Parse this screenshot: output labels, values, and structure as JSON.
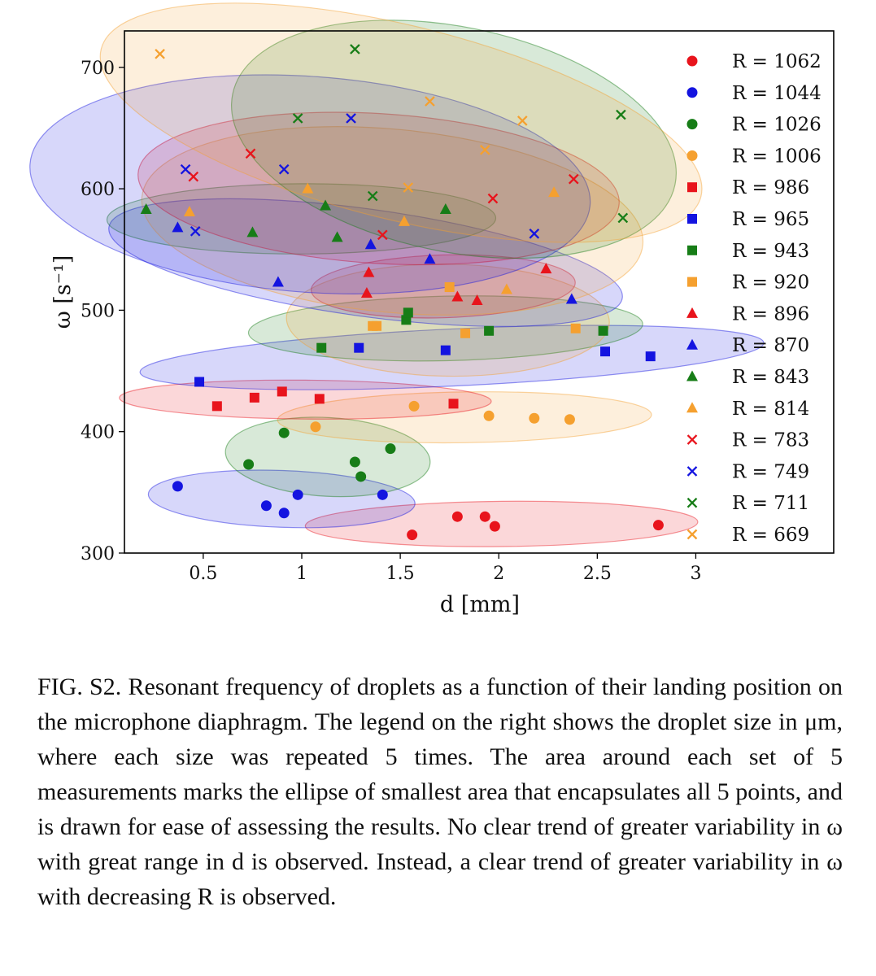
{
  "chart_data": {
    "type": "scatter",
    "xlabel": "d [mm]",
    "ylabel": "ω [s⁻¹]",
    "xlim": [
      0.1,
      3.7
    ],
    "ylim": [
      300,
      730
    ],
    "xticks": [
      "0.5",
      "1",
      "1.5",
      "2",
      "2.5",
      "3"
    ],
    "yticks": [
      "300",
      "400",
      "500",
      "600",
      "700"
    ],
    "legend_position": "right",
    "grid": false,
    "colors": {
      "red": "#e8141c",
      "blue": "#1414e0",
      "green": "#177d17",
      "orange": "#f5a02f"
    },
    "series": [
      {
        "name": "R = 1062",
        "color": "red",
        "marker": "circle",
        "points": [
          [
            1.56,
            315
          ],
          [
            1.79,
            330
          ],
          [
            1.93,
            330
          ],
          [
            1.98,
            322
          ],
          [
            2.81,
            323
          ]
        ]
      },
      {
        "name": "R = 1044",
        "color": "blue",
        "marker": "circle",
        "points": [
          [
            0.37,
            355
          ],
          [
            0.82,
            339
          ],
          [
            0.91,
            333
          ],
          [
            0.98,
            348
          ],
          [
            1.41,
            348
          ]
        ]
      },
      {
        "name": "R = 1026",
        "color": "green",
        "marker": "circle",
        "points": [
          [
            0.73,
            373
          ],
          [
            0.91,
            399
          ],
          [
            1.27,
            375
          ],
          [
            1.3,
            363
          ],
          [
            1.45,
            386
          ]
        ]
      },
      {
        "name": "R = 1006",
        "color": "orange",
        "marker": "circle",
        "points": [
          [
            1.07,
            404
          ],
          [
            1.57,
            421
          ],
          [
            1.95,
            413
          ],
          [
            2.18,
            411
          ],
          [
            2.36,
            410
          ]
        ]
      },
      {
        "name": "R = 986",
        "color": "red",
        "marker": "square",
        "points": [
          [
            0.57,
            421
          ],
          [
            0.76,
            428
          ],
          [
            0.9,
            433
          ],
          [
            1.09,
            427
          ],
          [
            1.77,
            423
          ]
        ]
      },
      {
        "name": "R = 965",
        "color": "blue",
        "marker": "square",
        "points": [
          [
            0.48,
            441
          ],
          [
            1.29,
            469
          ],
          [
            1.73,
            467
          ],
          [
            2.54,
            466
          ],
          [
            2.77,
            462
          ]
        ]
      },
      {
        "name": "R = 943",
        "color": "green",
        "marker": "square",
        "points": [
          [
            1.1,
            469
          ],
          [
            1.53,
            492
          ],
          [
            1.54,
            498
          ],
          [
            1.95,
            483
          ],
          [
            2.53,
            483
          ]
        ]
      },
      {
        "name": "R = 920",
        "color": "orange",
        "marker": "square",
        "points": [
          [
            1.36,
            487
          ],
          [
            1.38,
            487
          ],
          [
            1.75,
            519
          ],
          [
            1.83,
            481
          ],
          [
            2.39,
            485
          ]
        ]
      },
      {
        "name": "R = 896",
        "color": "red",
        "marker": "triangle",
        "points": [
          [
            1.33,
            514
          ],
          [
            1.34,
            531
          ],
          [
            1.79,
            511
          ],
          [
            1.89,
            508
          ],
          [
            2.24,
            534
          ]
        ]
      },
      {
        "name": "R = 870",
        "color": "blue",
        "marker": "triangle",
        "points": [
          [
            0.37,
            568
          ],
          [
            0.88,
            523
          ],
          [
            1.35,
            554
          ],
          [
            1.65,
            542
          ],
          [
            2.37,
            509
          ]
        ]
      },
      {
        "name": "R = 843",
        "color": "green",
        "marker": "triangle",
        "points": [
          [
            0.21,
            583
          ],
          [
            0.75,
            564
          ],
          [
            1.12,
            586
          ],
          [
            1.18,
            560
          ],
          [
            1.73,
            583
          ]
        ]
      },
      {
        "name": "R = 814",
        "color": "orange",
        "marker": "triangle",
        "points": [
          [
            0.43,
            581
          ],
          [
            1.03,
            600
          ],
          [
            1.52,
            573
          ],
          [
            2.04,
            517
          ],
          [
            2.28,
            597
          ]
        ]
      },
      {
        "name": "R = 783",
        "color": "red",
        "marker": "x",
        "points": [
          [
            0.45,
            610
          ],
          [
            0.74,
            629
          ],
          [
            1.41,
            562
          ],
          [
            1.97,
            592
          ],
          [
            2.38,
            608
          ]
        ]
      },
      {
        "name": "R = 749",
        "color": "blue",
        "marker": "x",
        "points": [
          [
            0.41,
            616
          ],
          [
            0.46,
            565
          ],
          [
            0.91,
            616
          ],
          [
            1.25,
            658
          ],
          [
            2.18,
            563
          ]
        ]
      },
      {
        "name": "R = 711",
        "color": "green",
        "marker": "x",
        "points": [
          [
            0.98,
            658
          ],
          [
            1.27,
            715
          ],
          [
            1.36,
            594
          ],
          [
            2.62,
            661
          ],
          [
            2.63,
            576
          ]
        ]
      },
      {
        "name": "R = 669",
        "color": "orange",
        "marker": "x",
        "points": [
          [
            0.28,
            711
          ],
          [
            1.54,
            601
          ],
          [
            1.65,
            672
          ],
          [
            1.93,
            632
          ],
          [
            2.12,
            656
          ]
        ]
      }
    ]
  },
  "caption": {
    "prefix": "FIG. S2. ",
    "text": "Resonant frequency of droplets as a function of their landing position on the microphone diaphragm. The legend on the right shows the droplet size in μm, where each size was repeated 5 times. The area around each set of 5 measurements marks the ellipse of smallest area that encapsulates all 5 points, and is drawn for ease of assessing the results. No clear trend of greater variability in ω with great range in d is observed. Instead, a clear trend of greater variability in ω with decreasing R is observed."
  }
}
